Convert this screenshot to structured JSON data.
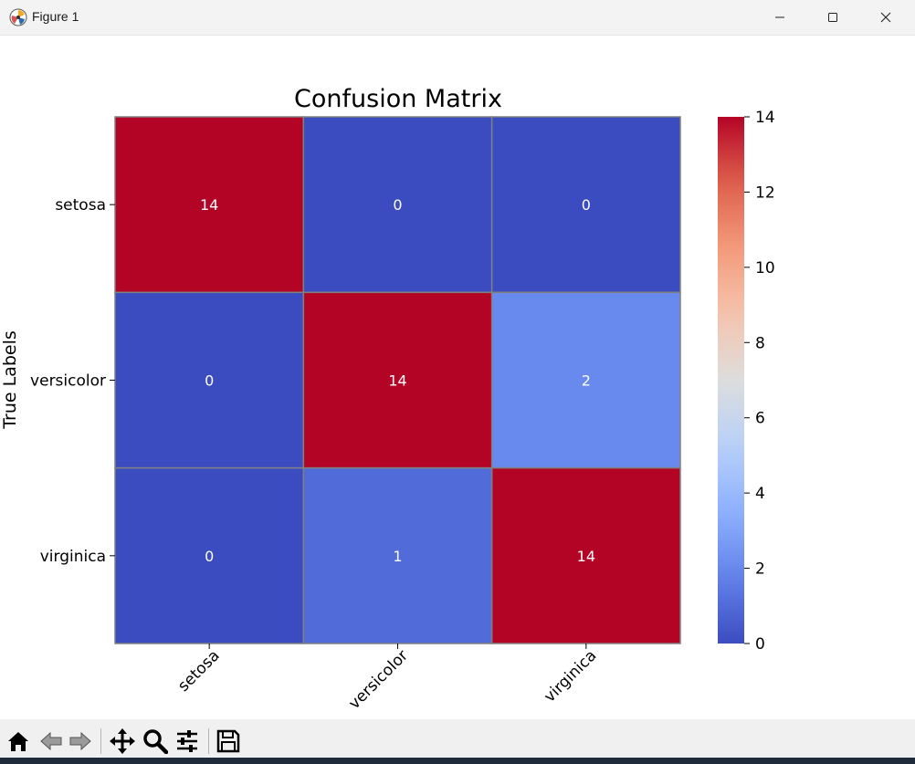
{
  "window": {
    "title": "Figure 1",
    "icon": "matplotlib-icon",
    "controls": [
      "minimize-icon",
      "maximize-icon",
      "close-icon"
    ]
  },
  "toolbar": {
    "tools": [
      "home-icon",
      "back-icon",
      "forward-icon",
      "pan-icon",
      "zoom-icon",
      "configure-subplots-icon",
      "save-icon"
    ]
  },
  "chart_data": {
    "type": "heatmap",
    "title": "Confusion Matrix",
    "ylabel": "True Labels",
    "xlabel": "",
    "x_categories": [
      "setosa",
      "versicolor",
      "virginica"
    ],
    "y_categories": [
      "setosa",
      "versicolor",
      "virginica"
    ],
    "values": [
      [
        14,
        0,
        0
      ],
      [
        0,
        14,
        2
      ],
      [
        0,
        1,
        14
      ]
    ],
    "colormap": "coolwarm",
    "vmin": 0,
    "vmax": 14,
    "colorbar_ticks": [
      0,
      2,
      4,
      6,
      8,
      10,
      12,
      14
    ],
    "cell_border_color": "#808080",
    "annotation_color": "#ffffff",
    "x_tick_rotation": -45
  }
}
